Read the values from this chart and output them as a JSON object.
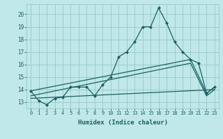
{
  "xlabel": "Humidex (Indice chaleur)",
  "background_color": "#c0e8e8",
  "grid_color": "#98c8c8",
  "line_color": "#1a6060",
  "xlim": [
    -0.5,
    23.5
  ],
  "ylim": [
    12.5,
    20.8
  ],
  "yticks": [
    13,
    14,
    15,
    16,
    17,
    18,
    19,
    20
  ],
  "xticks": [
    0,
    1,
    2,
    3,
    4,
    5,
    6,
    7,
    8,
    9,
    10,
    11,
    12,
    13,
    14,
    15,
    16,
    17,
    18,
    19,
    20,
    21,
    22,
    23
  ],
  "series1_x": [
    0,
    1,
    2,
    3,
    4,
    5,
    6,
    7,
    8,
    9,
    10,
    11,
    12,
    13,
    14,
    15,
    16,
    17,
    18,
    19,
    20,
    21,
    22,
    23
  ],
  "series1_y": [
    13.9,
    13.1,
    12.8,
    13.3,
    13.4,
    14.2,
    14.2,
    14.2,
    13.5,
    14.4,
    15.0,
    16.6,
    17.0,
    17.8,
    19.0,
    19.0,
    20.5,
    19.3,
    17.8,
    17.0,
    16.4,
    16.1,
    13.7,
    14.2
  ],
  "series2_x": [
    0,
    20,
    22,
    23
  ],
  "series2_y": [
    13.9,
    16.4,
    13.7,
    14.2
  ],
  "series3_x": [
    0,
    20,
    22,
    23
  ],
  "series3_y": [
    13.5,
    16.1,
    13.5,
    14.0
  ],
  "series4_x": [
    0,
    23
  ],
  "series4_y": [
    13.3,
    14.0
  ],
  "marker": "D",
  "marker_size": 2.5,
  "linewidth": 0.9
}
